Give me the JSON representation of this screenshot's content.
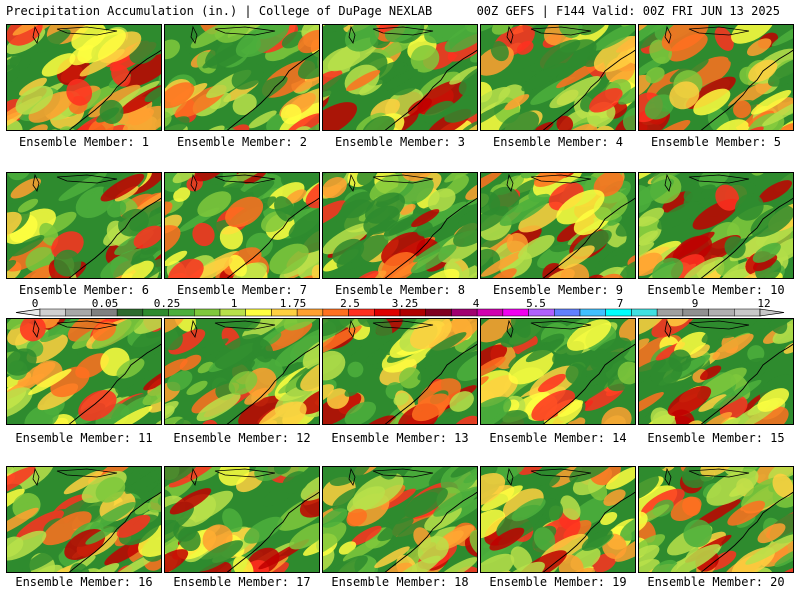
{
  "header": {
    "left": "Precipitation Accumulation (in.) | College of DuPage NEXLAB",
    "right": "00Z GEFS | F144 Valid: 00Z FRI JUN 13 2025"
  },
  "colorbar": {
    "labels": [
      "0",
      "0.05",
      "0.25",
      "1",
      "1.75",
      "2.5",
      "3.25",
      "4",
      "5.5",
      "7",
      "9",
      "12"
    ],
    "colors": [
      "#d0d0d0",
      "#a8a8a8",
      "#808080",
      "#2e6b2e",
      "#2e8b2e",
      "#4caf3c",
      "#7fc83c",
      "#b8e04a",
      "#ffff40",
      "#ffd040",
      "#ffa030",
      "#ff7020",
      "#ff3020",
      "#e00000",
      "#b00000",
      "#800020",
      "#a00070",
      "#d000b0",
      "#f000f0",
      "#b060ff",
      "#6080ff",
      "#40c0ff",
      "#00ffff",
      "#40e0e0",
      "#a0a0a0",
      "#909090",
      "#b0b0b0",
      "#c8c8c8"
    ]
  },
  "panels": [
    {
      "label": "Ensemble Member: 1"
    },
    {
      "label": "Ensemble Member: 2"
    },
    {
      "label": "Ensemble Member: 3"
    },
    {
      "label": "Ensemble Member: 4"
    },
    {
      "label": "Ensemble Member: 5"
    },
    {
      "label": "Ensemble Member: 6"
    },
    {
      "label": "Ensemble Member: 7"
    },
    {
      "label": "Ensemble Member: 8"
    },
    {
      "label": "Ensemble Member: 9"
    },
    {
      "label": "Ensemble Member: 10"
    },
    {
      "label": "Ensemble Member: 11"
    },
    {
      "label": "Ensemble Member: 12"
    },
    {
      "label": "Ensemble Member: 13"
    },
    {
      "label": "Ensemble Member: 14"
    },
    {
      "label": "Ensemble Member: 15"
    },
    {
      "label": "Ensemble Member: 16"
    },
    {
      "label": "Ensemble Member: 17"
    },
    {
      "label": "Ensemble Member: 18"
    },
    {
      "label": "Ensemble Member: 19"
    },
    {
      "label": "Ensemble Member: 20"
    }
  ]
}
